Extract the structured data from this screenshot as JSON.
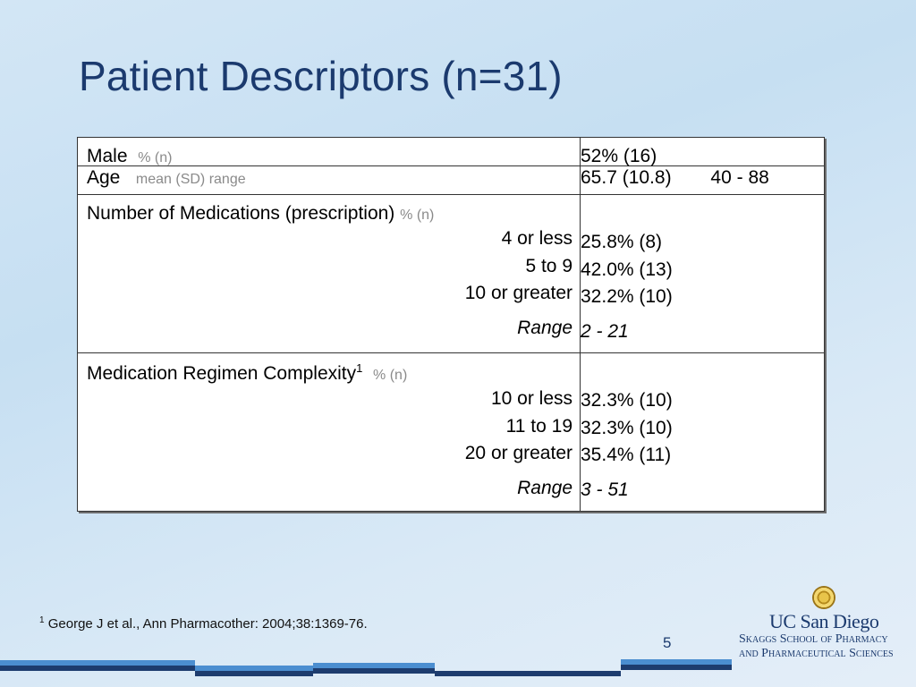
{
  "slide": {
    "title": "Patient Descriptors (n=31)",
    "page_number": "5"
  },
  "table": {
    "male": {
      "label": "Male",
      "sublabel": "% (n)",
      "value": "52% (16)"
    },
    "age": {
      "label": "Age",
      "sublabel": "mean (SD) range",
      "value": "65.7 (10.8)",
      "range": "40 - 88"
    },
    "medications": {
      "label": "Number of Medications (prescription)",
      "sublabel": "% (n)",
      "rows": [
        {
          "label": "4 or less",
          "value": "25.8% (8)"
        },
        {
          "label": "5 to 9",
          "value": "42.0% (13)"
        },
        {
          "label": "10 or greater",
          "value": "32.2% (10)"
        }
      ],
      "range_label": "Range",
      "range_value": "2 - 21"
    },
    "complexity": {
      "label": "Medication Regimen Complexity",
      "footnote_mark": "1",
      "sublabel": "% (n)",
      "rows": [
        {
          "label": "10 or less",
          "value": "32.3% (10)"
        },
        {
          "label": "11 to 19",
          "value": "32.3% (10)"
        },
        {
          "label": "20 or greater",
          "value": "35.4% (11)"
        }
      ],
      "range_label": "Range",
      "range_value": "3 - 51"
    }
  },
  "footnote": {
    "mark": "1",
    "text": "George J et al., Ann Pharmacother: 2004;38:1369-76."
  },
  "logo": {
    "line1": "UC San Diego",
    "line2": "Skaggs School of Pharmacy",
    "line3": "and Pharmaceutical Sciences"
  },
  "colors": {
    "title": "#1b3a6e",
    "bar_dark": "#1d3c6e",
    "bar_light": "#4b8ed0"
  }
}
